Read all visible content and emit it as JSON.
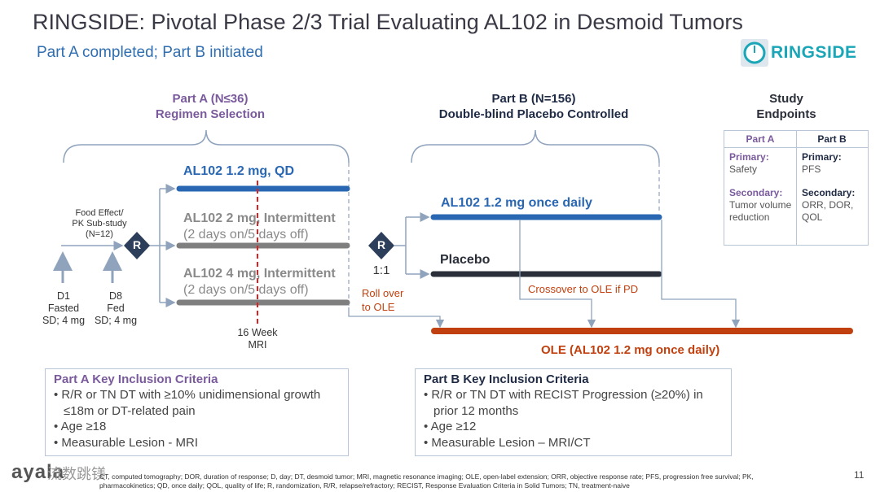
{
  "header": {
    "title": "RINGSIDE: Pivotal Phase 2/3 Trial Evaluating AL102 in Desmoid Tumors",
    "subtitle": "Part A completed; Part B initiated",
    "logo_text": "RINGSIDE"
  },
  "part_a": {
    "heading_line1": "Part A (N≤36)",
    "heading_line2": "Regimen Selection",
    "food_effect_line1": "Food Effect/",
    "food_effect_line2": "PK Sub-study",
    "food_effect_line3": "(N=12)",
    "randomize_label": "R",
    "arms": [
      {
        "line1": "AL102 1.2 mg, QD",
        "line2": ""
      },
      {
        "line1": "AL102 2 mg, Intermittent",
        "line2": "(2 days on/5 days off)"
      },
      {
        "line1": "AL102 4 mg, Intermittent",
        "line2": "(2 days on/5 days off)"
      }
    ],
    "d1_line1": "D1",
    "d1_line2": "Fasted",
    "d1_line3": "SD; 4 mg",
    "d8_line1": "D8",
    "d8_line2": "Fed",
    "d8_line3": "SD; 4 mg",
    "mri_line1": "16 Week",
    "mri_line2": "MRI",
    "rollover_line1": "Roll over",
    "rollover_line2": "to OLE"
  },
  "part_b": {
    "heading_line1": "Part B (N=156)",
    "heading_line2": "Double-blind Placebo Controlled",
    "randomize_label": "R",
    "ratio": "1:1",
    "arm_drug": "AL102 1.2 mg once daily",
    "arm_placebo": "Placebo",
    "crossover": "Crossover to OLE if PD",
    "ole": "OLE (AL102 1.2 mg once daily)"
  },
  "endpoints": {
    "heading_line1": "Study",
    "heading_line2": "Endpoints",
    "col_a": "Part A",
    "col_b": "Part B",
    "a_primary_label": "Primary:",
    "a_primary_value": "Safety",
    "a_secondary_label": "Secondary:",
    "a_secondary_value": "Tumor volume reduction",
    "b_primary_label": "Primary:",
    "b_primary_value": "PFS",
    "b_secondary_label": "Secondary:",
    "b_secondary_value": "ORR, DOR, QOL"
  },
  "criteria_a": {
    "title": "Part A Key Inclusion Criteria",
    "items": [
      "• R/R or TN DT with ≥10% unidimensional growth ≤18m or DT-related pain",
      "• Age ≥18",
      "• Measurable Lesion - MRI"
    ]
  },
  "criteria_b": {
    "title": "Part B Key Inclusion Criteria",
    "items": [
      "• R/R or TN DT with RECIST Progression (≥20%) in prior 12 months",
      "• Age ≥12",
      "• Measurable Lesion – MRI/CT"
    ]
  },
  "footer": {
    "footnote": "CT, computed tomography; DOR, duration of response; D, day; DT, desmoid tumor; MRI, magnetic resonance imaging; OLE, open-label extension; ORR, objective response rate; PFS, progression free survival; PK, pharmacokinetics; QD, once daily; QOL, quality of life; R, randomization, R/R, relapse/refractory; RECIST, Response Evaluation Criteria in Solid Tumors; TN, treatment-naive",
    "page_number": "11",
    "watermark": "ayala",
    "watermark2": "流数跳镁"
  },
  "colors": {
    "part_a_accent": "#7a5a9c",
    "drug_arm": "#2a67b3",
    "intermittent_arm": "#7f7f7f",
    "placebo_arm": "#2a2f3a",
    "ole": "#c0410f",
    "connector": "#8fa3bd",
    "mri_line": "#e02020"
  }
}
